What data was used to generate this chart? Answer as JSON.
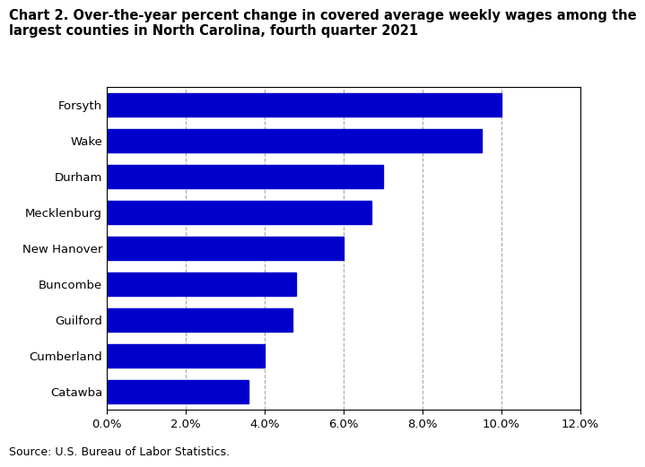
{
  "title_line1": "Chart 2. Over-the-year percent change in covered average weekly wages among the",
  "title_line2": "largest counties in North Carolina, fourth quarter 2021",
  "categories": [
    "Forsyth",
    "Wake",
    "Durham",
    "Mecklenburg",
    "New Hanover",
    "Buncombe",
    "Guilford",
    "Cumberland",
    "Catawba"
  ],
  "values": [
    10.0,
    9.5,
    7.0,
    6.7,
    6.0,
    4.8,
    4.7,
    4.0,
    3.6
  ],
  "bar_color": "#0000CC",
  "xlim": [
    0,
    12.0
  ],
  "xticks": [
    0.0,
    2.0,
    4.0,
    6.0,
    8.0,
    10.0,
    12.0
  ],
  "source": "Source: U.S. Bureau of Labor Statistics.",
  "title_fontsize": 10.5,
  "tick_fontsize": 9.5,
  "source_fontsize": 9,
  "bar_height": 0.65,
  "grid_color": "#aaaaaa",
  "background_color": "#ffffff"
}
